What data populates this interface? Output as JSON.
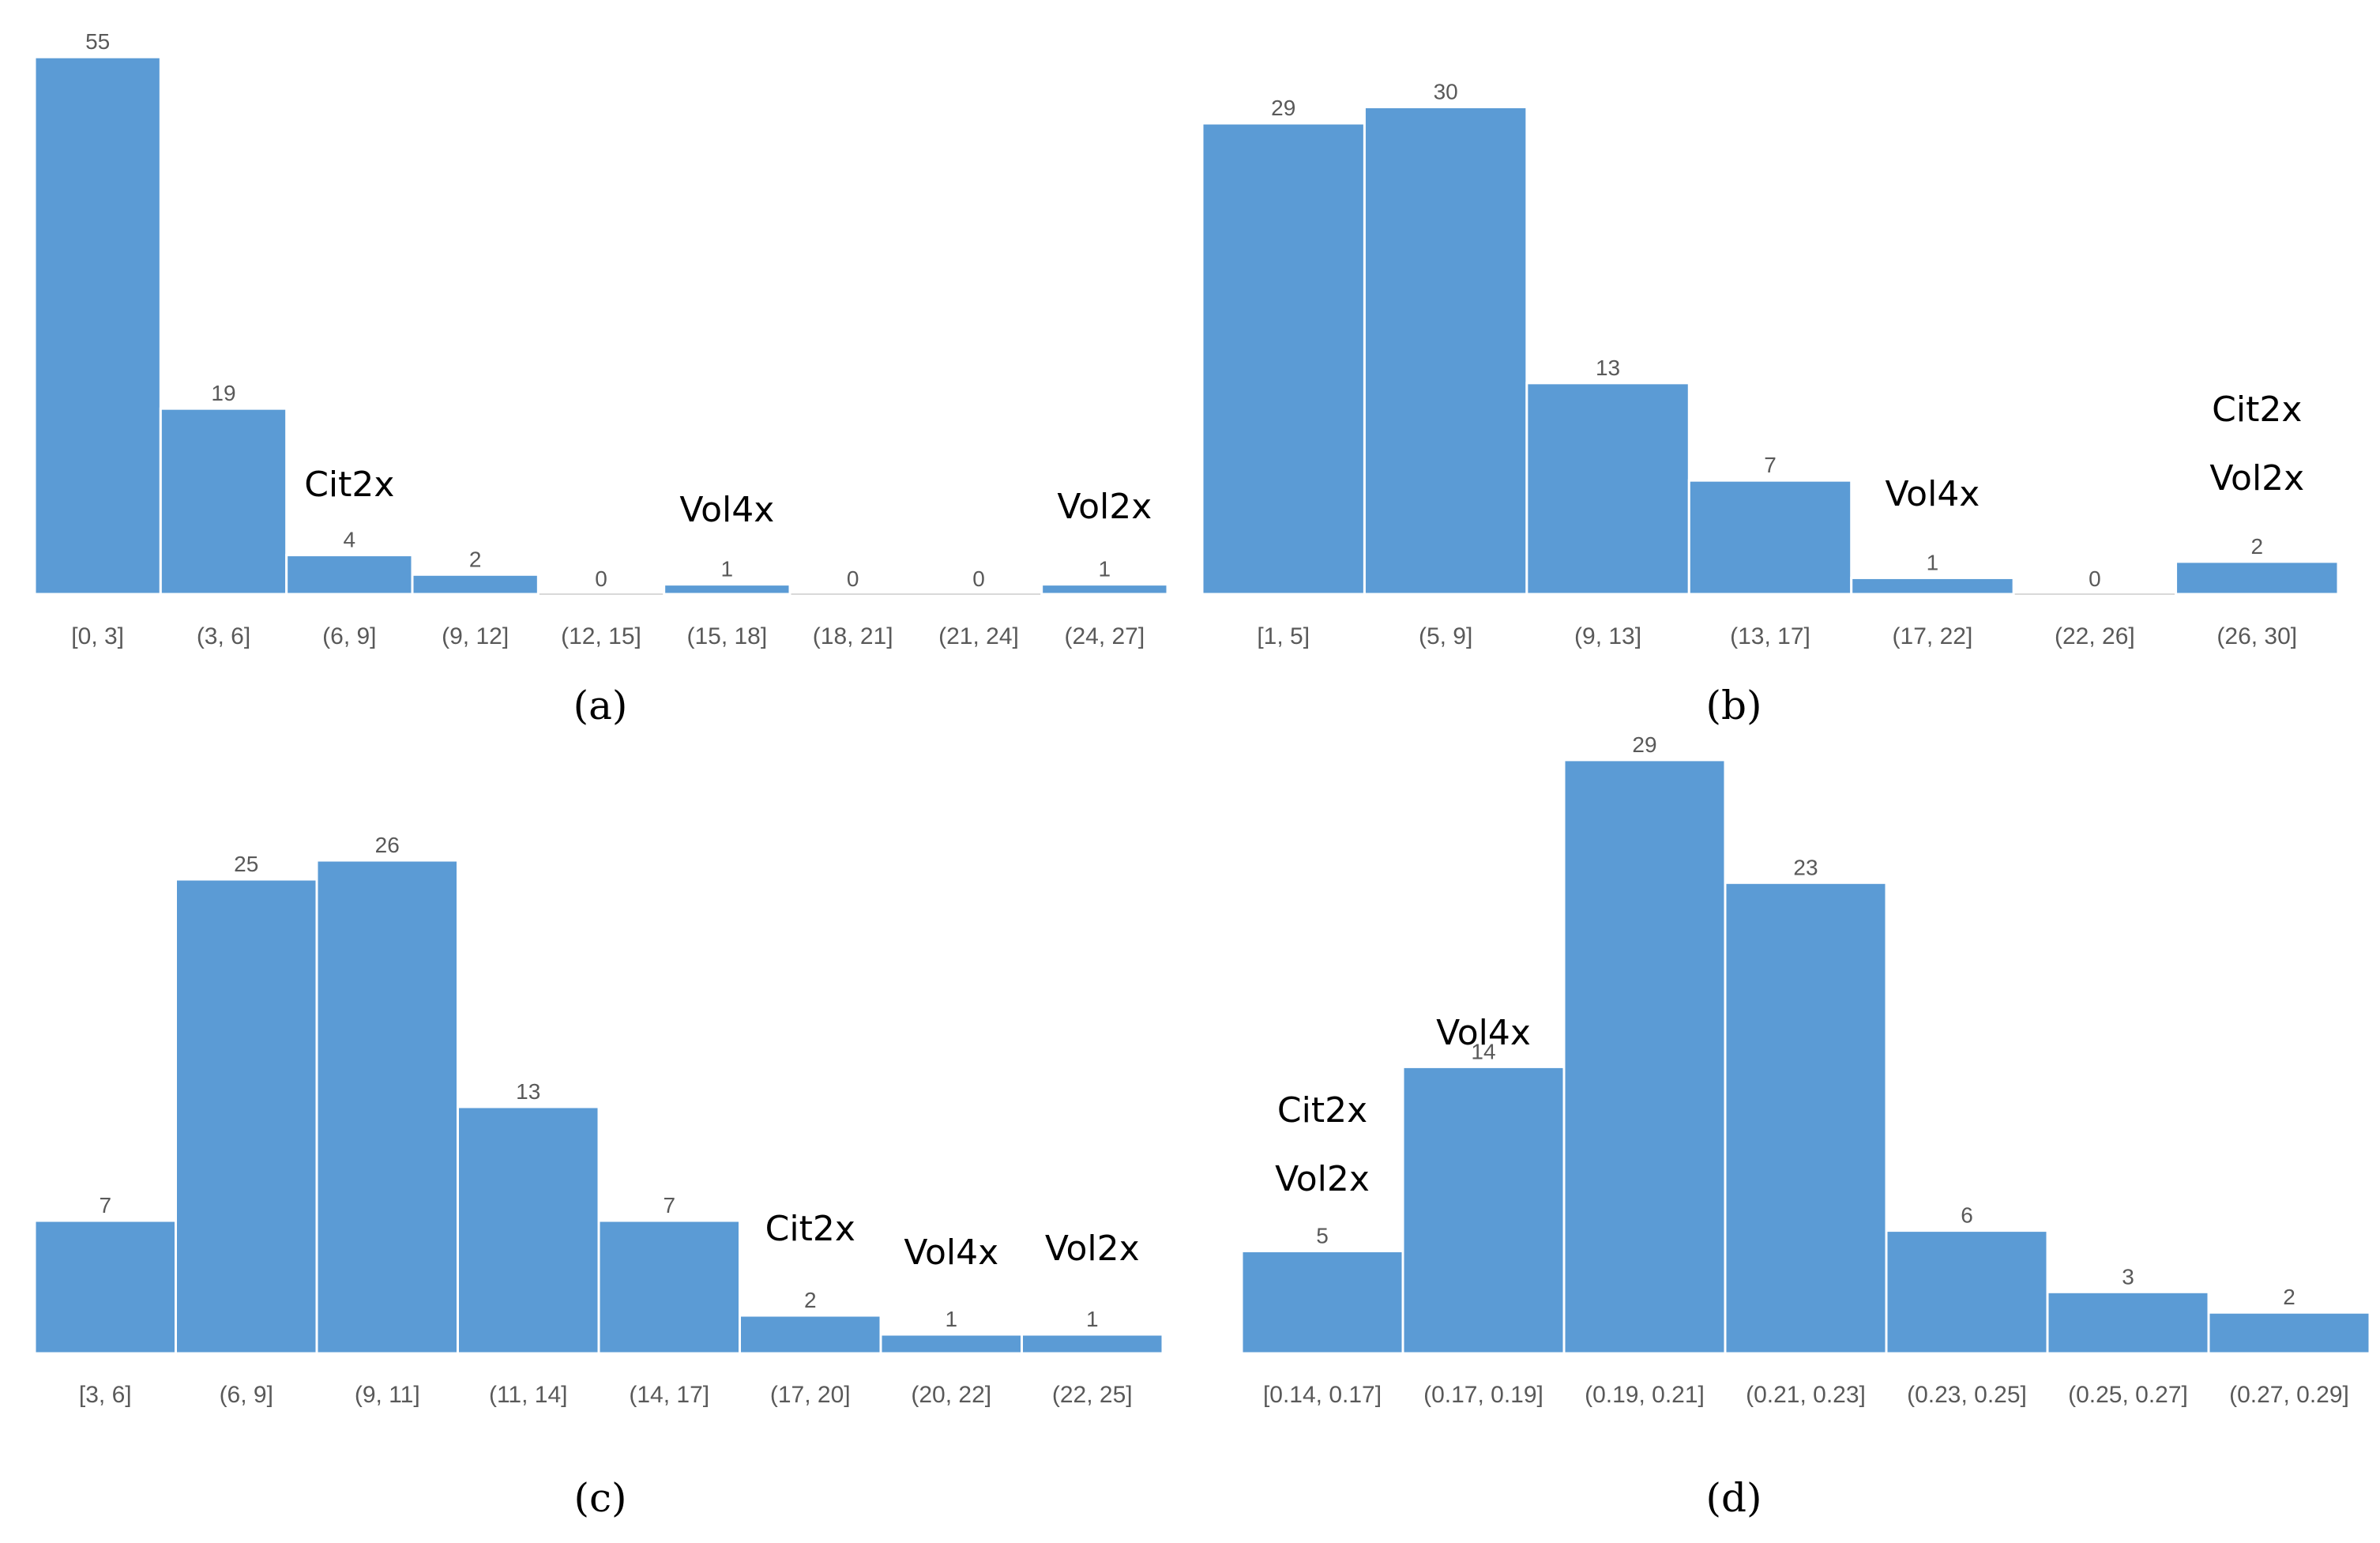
{
  "chart_data": [
    {
      "type": "bar",
      "caption": "(a)",
      "categories": [
        "[0, 3]",
        "(3, 6]",
        "(6, 9]",
        "(9, 12]",
        "(12, 15]",
        "(15, 18]",
        "(18, 21]",
        "(21, 24]",
        "(24, 27]"
      ],
      "values": [
        55,
        19,
        4,
        2,
        0,
        1,
        0,
        0,
        1
      ],
      "annotations": [
        {
          "category": "(6, 9]",
          "lines": [
            "Cit2x"
          ]
        },
        {
          "category": "(15, 18]",
          "lines": [
            "Vol4x"
          ]
        },
        {
          "category": "(24, 27]",
          "lines": [
            "Vol2x"
          ]
        }
      ]
    },
    {
      "type": "bar",
      "caption": "(b)",
      "categories": [
        "[1, 5]",
        "(5, 9]",
        "(9, 13]",
        "(13, 17]",
        "(17, 22]",
        "(22, 26]",
        "(26, 30]"
      ],
      "values": [
        29,
        30,
        13,
        7,
        1,
        0,
        2
      ],
      "annotations": [
        {
          "category": "(17, 22]",
          "lines": [
            "Vol4x"
          ]
        },
        {
          "category": "(26, 30]",
          "lines": [
            "Cit2x",
            "Vol2x"
          ]
        }
      ]
    },
    {
      "type": "bar",
      "caption": "(c)",
      "categories": [
        "[3, 6]",
        "(6, 9]",
        "(9, 11]",
        "(11, 14]",
        "(14, 17]",
        "(17, 20]",
        "(20, 22]",
        "(22, 25]"
      ],
      "values": [
        7,
        25,
        26,
        13,
        7,
        2,
        1,
        1
      ],
      "annotations": [
        {
          "category": "(17, 20]",
          "lines": [
            "Cit2x"
          ]
        },
        {
          "category": "(20, 22]",
          "lines": [
            "Vol4x"
          ]
        },
        {
          "category": "(22, 25]",
          "lines": [
            "Vol2x"
          ]
        }
      ]
    },
    {
      "type": "bar",
      "caption": "(d)",
      "categories": [
        "[0.14, 0.17]",
        "(0.17, 0.19]",
        "(0.19, 0.21]",
        "(0.21, 0.23]",
        "(0.23, 0.25]",
        "(0.25, 0.27]",
        "(0.27, 0.29]"
      ],
      "values": [
        5,
        14,
        29,
        23,
        6,
        3,
        2
      ],
      "annotations": [
        {
          "category": "[0.14, 0.17]",
          "lines": [
            "Cit2x",
            "Vol2x"
          ]
        },
        {
          "category": "(0.17, 0.19]",
          "lines": [
            "Vol4x"
          ]
        }
      ]
    }
  ],
  "colors": {
    "bar": "#5b9bd5"
  }
}
